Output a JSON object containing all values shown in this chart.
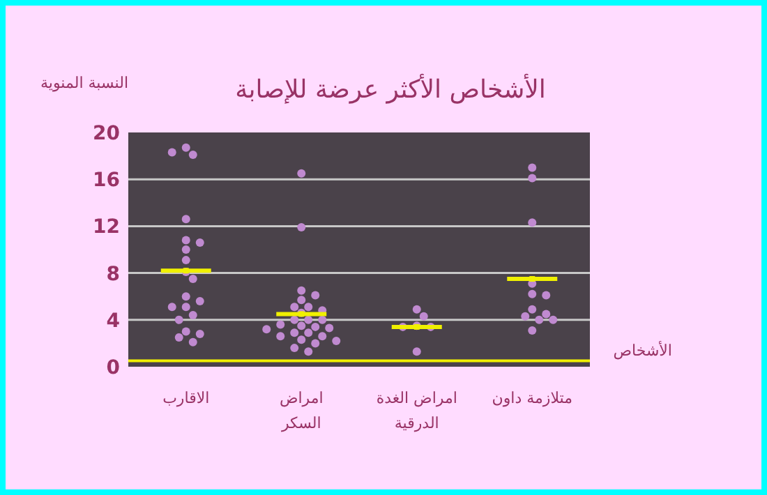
{
  "chart_data": {
    "type": "scatter",
    "title": "الأشخاص الأكثر عرضة للإصابة",
    "xlabel": "الأشخاص",
    "ylabel": "النسبة المنوية",
    "categories": [
      "الاقارب",
      "امراض السكر",
      "امراض الغدة الدرقية",
      "متلازمة داون"
    ],
    "ylim": [
      0,
      20
    ],
    "yticks": [
      0,
      4,
      8,
      12,
      16,
      20
    ],
    "grid": "y",
    "marker": "circle",
    "ref_lines": [
      {
        "axis": "y",
        "value": 0.5,
        "color": "#f0f000"
      }
    ],
    "series": [
      {
        "color": "#c08ad0",
        "x": [
          "الاقارب",
          "الاقارب",
          "الاقارب",
          "الاقارب",
          "الاقارب",
          "الاقارب",
          "الاقارب",
          "الاقارب",
          "الاقارب",
          "الاقارب",
          "الاقارب",
          "الاقارب",
          "الاقارب",
          "الاقارب",
          "الاقارب",
          "الاقارب",
          "الاقارب",
          "الاقارب",
          "الاقارب",
          "الاقارب",
          "امراض السكر",
          "امراض السكر",
          "امراض السكر",
          "امراض السكر",
          "امراض السكر",
          "امراض السكر",
          "امراض السكر",
          "امراض السكر",
          "امراض السكر",
          "امراض السكر",
          "امراض السكر",
          "امراض السكر",
          "امراض السكر",
          "امراض السكر",
          "امراض السكر",
          "امراض السكر",
          "امراض السكر",
          "امراض السكر",
          "امراض السكر",
          "امراض السكر",
          "امراض السكر",
          "امراض السكر",
          "امراض السكر",
          "امراض السكر",
          "امراض السكر",
          "امراض السكر",
          "امراض الغدة الدرقية",
          "امراض الغدة الدرقية",
          "امراض الغدة الدرقية",
          "امراض الغدة الدرقية",
          "امراض الغدة الدرقية",
          "امراض الغدة الدرقية",
          "متلازمة داون",
          "متلازمة داون",
          "متلازمة داون",
          "متلازمة داون",
          "متلازمة داون",
          "متلازمة داون",
          "متلازمة داون",
          "متلازمة داون",
          "متلازمة داون",
          "متلازمة داون",
          "متلازمة داون",
          "متلازمة داون"
        ],
        "values": [
          18.7,
          18.1,
          18.3,
          12.6,
          10.8,
          10.6,
          10.0,
          9.1,
          8.1,
          7.5,
          6.0,
          5.6,
          5.1,
          5.1,
          4.4,
          4.0,
          3.0,
          2.8,
          2.5,
          2.1,
          16.5,
          11.9,
          6.5,
          6.1,
          5.7,
          5.1,
          5.1,
          4.8,
          4.6,
          4.0,
          4.0,
          4.0,
          3.6,
          3.5,
          3.4,
          3.3,
          3.2,
          2.9,
          2.9,
          2.6,
          2.6,
          2.3,
          2.2,
          2.0,
          1.6,
          1.3,
          4.9,
          4.3,
          3.5,
          3.4,
          3.4,
          1.3,
          17.0,
          16.1,
          12.3,
          7.1,
          6.2,
          6.1,
          4.9,
          4.5,
          4.3,
          4.0,
          4.0,
          3.1
        ]
      },
      {
        "type": "scatter",
        "marker": "square",
        "color": "#f0f000",
        "x": [
          "الاقارب",
          "امراض السكر",
          "امراض الغدة الدرقية",
          "متلازمة داون"
        ],
        "values": [
          8.2,
          4.5,
          3.4,
          7.5
        ]
      }
    ]
  }
}
